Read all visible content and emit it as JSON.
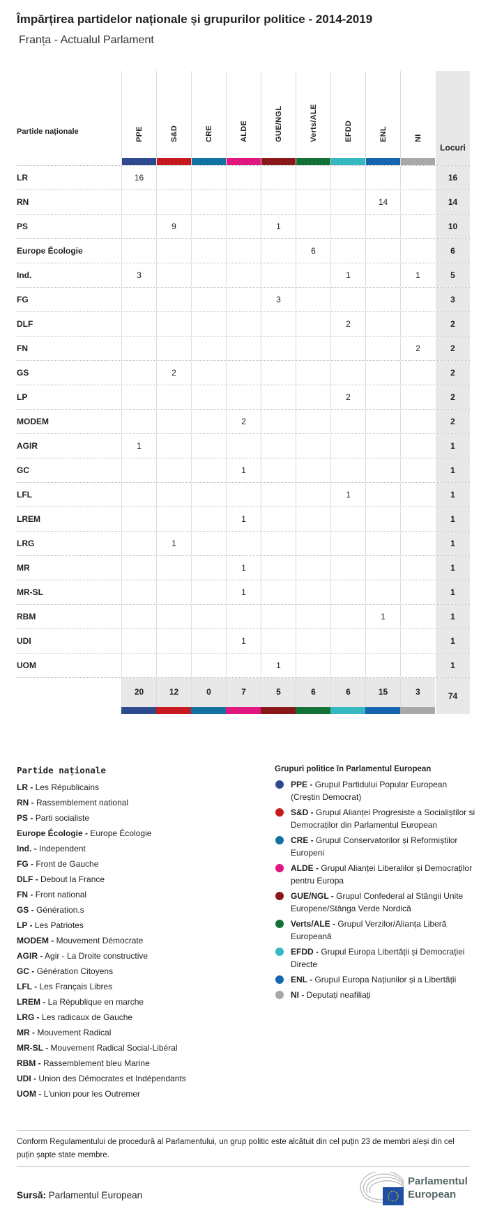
{
  "title": "Împărțirea partidelor naționale și grupurilor politice - 2014-2019",
  "subtitle": "Franța - Actualul Parlament",
  "table": {
    "row_header": "Partide naționale",
    "seats_header": "Locuri",
    "groups": [
      {
        "label": "PPE",
        "color": "#2e4a8e"
      },
      {
        "label": "S&D",
        "color": "#c5191e"
      },
      {
        "label": "CRE",
        "color": "#0f72a0"
      },
      {
        "label": "ALDE",
        "color": "#e0177e"
      },
      {
        "label": "GUE/NGL",
        "color": "#8a1818"
      },
      {
        "label": "Verts/ALE",
        "color": "#127236"
      },
      {
        "label": "EFDD",
        "color": "#36b8c0"
      },
      {
        "label": "ENL",
        "color": "#1464ae"
      },
      {
        "label": "NI",
        "color": "#a8a8a8"
      }
    ],
    "rows": [
      {
        "party": "LR",
        "values": [
          "16",
          "",
          "",
          "",
          "",
          "",
          "",
          "",
          ""
        ],
        "total": "16"
      },
      {
        "party": "RN",
        "values": [
          "",
          "",
          "",
          "",
          "",
          "",
          "",
          "14",
          ""
        ],
        "total": "14"
      },
      {
        "party": "PS",
        "values": [
          "",
          "9",
          "",
          "",
          "1",
          "",
          "",
          "",
          ""
        ],
        "total": "10"
      },
      {
        "party": "Europe Écologie",
        "values": [
          "",
          "",
          "",
          "",
          "",
          "6",
          "",
          "",
          ""
        ],
        "total": "6"
      },
      {
        "party": "Ind.",
        "values": [
          "3",
          "",
          "",
          "",
          "",
          "",
          "1",
          "",
          "1"
        ],
        "total": "5"
      },
      {
        "party": "FG",
        "values": [
          "",
          "",
          "",
          "",
          "3",
          "",
          "",
          "",
          ""
        ],
        "total": "3"
      },
      {
        "party": "DLF",
        "values": [
          "",
          "",
          "",
          "",
          "",
          "",
          "2",
          "",
          ""
        ],
        "total": "2"
      },
      {
        "party": "FN",
        "values": [
          "",
          "",
          "",
          "",
          "",
          "",
          "",
          "",
          "2"
        ],
        "total": "2"
      },
      {
        "party": "GS",
        "values": [
          "",
          "2",
          "",
          "",
          "",
          "",
          "",
          "",
          ""
        ],
        "total": "2"
      },
      {
        "party": "LP",
        "values": [
          "",
          "",
          "",
          "",
          "",
          "",
          "2",
          "",
          ""
        ],
        "total": "2"
      },
      {
        "party": "MODEM",
        "values": [
          "",
          "",
          "",
          "2",
          "",
          "",
          "",
          "",
          ""
        ],
        "total": "2"
      },
      {
        "party": "AGIR",
        "values": [
          "1",
          "",
          "",
          "",
          "",
          "",
          "",
          "",
          ""
        ],
        "total": "1"
      },
      {
        "party": "GC",
        "values": [
          "",
          "",
          "",
          "1",
          "",
          "",
          "",
          "",
          ""
        ],
        "total": "1"
      },
      {
        "party": "LFL",
        "values": [
          "",
          "",
          "",
          "",
          "",
          "",
          "1",
          "",
          ""
        ],
        "total": "1"
      },
      {
        "party": "LREM",
        "values": [
          "",
          "",
          "",
          "1",
          "",
          "",
          "",
          "",
          ""
        ],
        "total": "1"
      },
      {
        "party": "LRG",
        "values": [
          "",
          "1",
          "",
          "",
          "",
          "",
          "",
          "",
          ""
        ],
        "total": "1"
      },
      {
        "party": "MR",
        "values": [
          "",
          "",
          "",
          "1",
          "",
          "",
          "",
          "",
          ""
        ],
        "total": "1"
      },
      {
        "party": "MR-SL",
        "values": [
          "",
          "",
          "",
          "1",
          "",
          "",
          "",
          "",
          ""
        ],
        "total": "1"
      },
      {
        "party": "RBM",
        "values": [
          "",
          "",
          "",
          "",
          "",
          "",
          "",
          "1",
          ""
        ],
        "total": "1"
      },
      {
        "party": "UDI",
        "values": [
          "",
          "",
          "",
          "1",
          "",
          "",
          "",
          "",
          ""
        ],
        "total": "1"
      },
      {
        "party": "UOM",
        "values": [
          "",
          "",
          "",
          "",
          "1",
          "",
          "",
          "",
          ""
        ],
        "total": "1"
      }
    ],
    "group_totals": [
      "20",
      "12",
      "0",
      "7",
      "5",
      "6",
      "6",
      "15",
      "3"
    ],
    "grand_total": "74"
  },
  "legend_parties": {
    "title": "Partide naționale",
    "items": [
      {
        "abbr": "LR -",
        "name": "Les Républicains"
      },
      {
        "abbr": "RN -",
        "name": "Rassemblement national"
      },
      {
        "abbr": "PS -",
        "name": "Parti socialiste"
      },
      {
        "abbr": "Europe Écologie -",
        "name": "Europe Écologie"
      },
      {
        "abbr": "Ind. -",
        "name": "Independent"
      },
      {
        "abbr": "FG -",
        "name": "Front de Gauche"
      },
      {
        "abbr": "DLF -",
        "name": "Debout la France"
      },
      {
        "abbr": "FN -",
        "name": "Front national"
      },
      {
        "abbr": "GS -",
        "name": "Génération.s"
      },
      {
        "abbr": "LP -",
        "name": "Les Patriotes"
      },
      {
        "abbr": "MODEM -",
        "name": "Mouvement Démocrate"
      },
      {
        "abbr": "AGIR -",
        "name": "Agir - La Droite constructive"
      },
      {
        "abbr": "GC -",
        "name": "Génération Citoyens"
      },
      {
        "abbr": "LFL -",
        "name": "Les Français Libres"
      },
      {
        "abbr": "LREM -",
        "name": "La République en marche"
      },
      {
        "abbr": "LRG -",
        "name": "Les radicaux de Gauche"
      },
      {
        "abbr": "MR -",
        "name": "Mouvement Radical"
      },
      {
        "abbr": "MR-SL -",
        "name": "Mouvement Radical Social-Libéral"
      },
      {
        "abbr": "RBM -",
        "name": "Rassemblement bleu Marine"
      },
      {
        "abbr": "UDI -",
        "name": "Union des Démocrates et Indépendants"
      },
      {
        "abbr": "UOM -",
        "name": "L'union pour les Outremer"
      }
    ]
  },
  "legend_groups": {
    "title": "Grupuri politice în Parlamentul European",
    "items": [
      {
        "abbr": "PPE -",
        "name": "Grupul Partidului Popular European (Creștin Democrat)",
        "color": "#2e4a8e"
      },
      {
        "abbr": "S&D -",
        "name": "Grupul Alianței Progresiste a Socialiștilor si Democraților din Parlamentul European",
        "color": "#c5191e"
      },
      {
        "abbr": "CRE -",
        "name": "Grupul Conservatorilor și Reformiștilor Europeni",
        "color": "#0f72a0"
      },
      {
        "abbr": "ALDE -",
        "name": "Grupul Alianței Liberalilor și Democraților pentru Europa",
        "color": "#e0177e"
      },
      {
        "abbr": "GUE/NGL -",
        "name": "Grupul Confederal al Stângii Unite Europene/Stânga Verde Nordică",
        "color": "#8a1818"
      },
      {
        "abbr": "Verts/ALE -",
        "name": "Grupul Verzilor/Alianța Liberă Europeană",
        "color": "#127236"
      },
      {
        "abbr": "EFDD -",
        "name": "Grupul Europa Libertății și Democrației Directe",
        "color": "#36b8c0"
      },
      {
        "abbr": "ENL -",
        "name": "Grupul Europa Națiunilor și a Libertății",
        "color": "#1464ae"
      },
      {
        "abbr": "NI -",
        "name": "Deputați neafiliați",
        "color": "#a8a8a8"
      }
    ]
  },
  "note": "Conform Regulamentului de procedură al Parlamentului, un grup politic este alcătuit din cel puțin 23 de membri aleși din cel puțin șapte state membre.",
  "source": {
    "label": "Sursă:",
    "value": "Parlamentul European"
  },
  "logo": {
    "line1": "Parlamentul",
    "line2": "European"
  }
}
